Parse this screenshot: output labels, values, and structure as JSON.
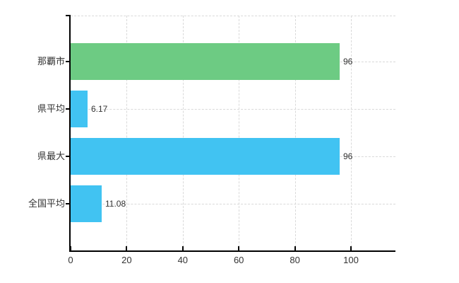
{
  "chart_data": {
    "type": "bar",
    "orientation": "horizontal",
    "title": "",
    "xlabel": "",
    "ylabel": "",
    "categories": [
      "那覇市",
      "県平均",
      "県最大",
      "全国平均"
    ],
    "values": [
      96,
      6.17,
      96,
      11.08
    ],
    "value_labels": [
      "96",
      "6.17",
      "96",
      "11.08"
    ],
    "bar_colors": [
      "#6dcb83",
      "#41c3f2",
      "#41c3f2",
      "#41c3f2"
    ],
    "xticks": [
      0,
      20,
      40,
      60,
      80,
      100
    ],
    "xtick_labels": [
      "0",
      "20",
      "40",
      "60",
      "80",
      "100"
    ],
    "xlim": [
      0,
      116
    ],
    "grid": true,
    "legend": "none"
  },
  "colors": {
    "background": "#ffffff",
    "axis": "#000000",
    "gridline": "#d9d9d9",
    "text": "#333333",
    "bar_green": "#6dcb83",
    "bar_blue": "#41c3f2"
  }
}
